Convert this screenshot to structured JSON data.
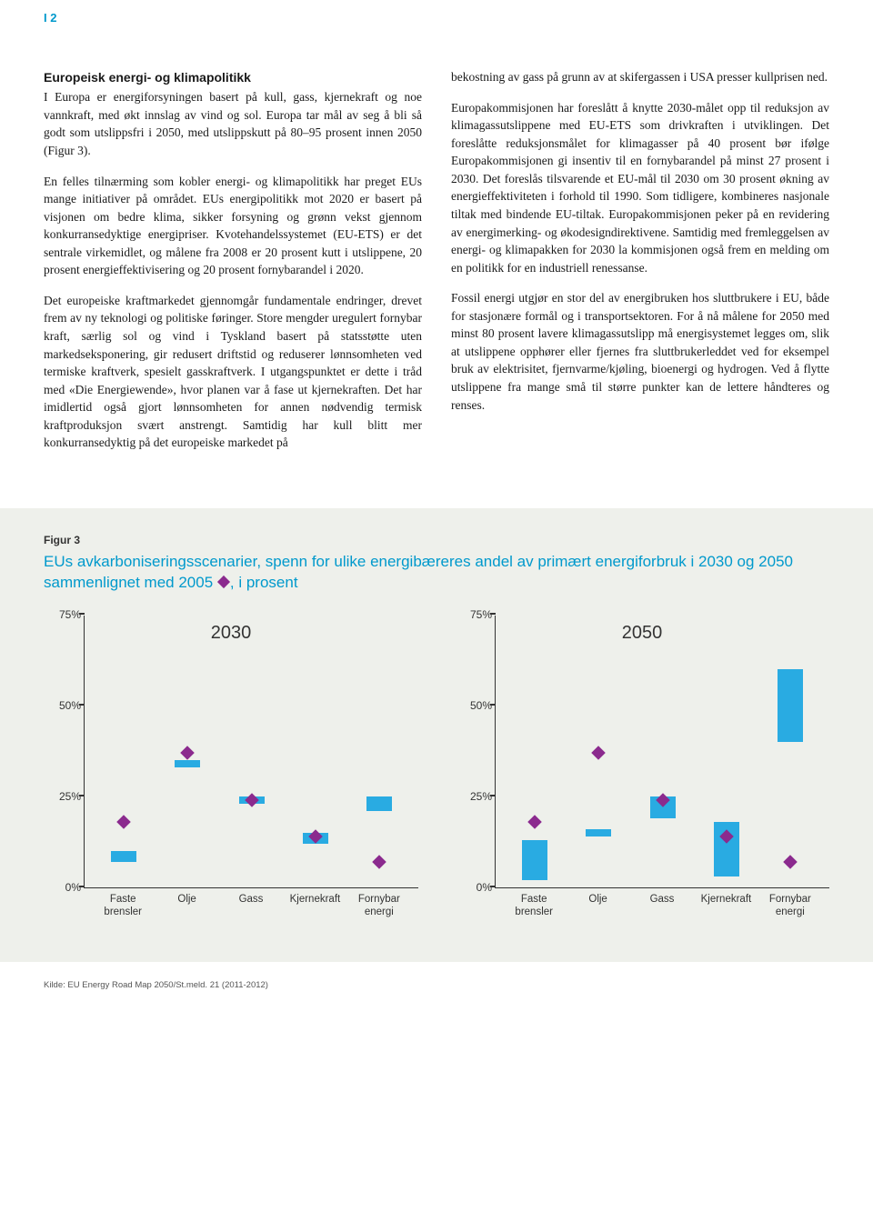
{
  "page_number": "I 2",
  "section_heading": "Europeisk energi- og klimapolitikk",
  "left_paragraphs": [
    "I Europa er energiforsyningen basert på kull, gass, kjernekraft og noe vannkraft, med økt innslag av vind og sol. Europa tar mål av seg å bli så godt som utslippsfri i 2050, med utslippskutt på 80–95 prosent innen 2050 (Figur 3).",
    "En felles tilnærming som kobler energi- og klimapolitikk har preget EUs mange initiativer på området. EUs energipolitikk mot 2020 er basert på visjonen om bedre klima, sikker forsyning og grønn vekst gjennom konkurransedyktige energipriser. Kvotehandelssystemet (EU-ETS) er det sentrale virkemidlet, og målene fra 2008 er 20 prosent kutt i utslippene, 20 prosent energieffektivisering og 20 prosent fornybarandel i 2020.",
    "Det europeiske kraftmarkedet gjennomgår fundamentale endringer, drevet frem av ny teknologi og politiske føringer. Store mengder uregulert fornybar kraft, særlig sol og vind i Tyskland basert på statsstøtte uten markedseksponering, gir redusert driftstid og reduserer lønnsomheten ved termiske kraftverk, spesielt gasskraftverk. I utgangspunktet er dette i tråd med «Die Energiewende», hvor planen var å fase ut kjernekraften. Det har imidlertid også gjort lønnsomheten for annen nødvendig termisk kraftproduksjon svært anstrengt. Samtidig har kull blitt mer konkurransedyktig på det europeiske markedet på"
  ],
  "right_paragraphs": [
    "bekostning av gass på grunn av at skifergassen i USA presser kullprisen ned.",
    "Europakommisjonen har foreslått å knytte 2030-målet opp til reduksjon av klimagassutslippene med EU-ETS som drivkraften i utviklingen. Det foreslåtte reduksjonsmålet for klimagasser på 40 prosent bør ifølge Europakommisjonen gi insentiv til en fornybarandel på minst 27 prosent i 2030. Det foreslås tilsvarende et EU-mål til 2030 om 30 prosent økning av energieffektiviteten i forhold til 1990. Som tidligere, kombineres nasjonale tiltak med bindende EU-tiltak. Europakommisjonen peker på en revidering av energimerking- og økodesigndirektivene. Samtidig med fremleggelsen av energi- og klimapakken for 2030 la kommisjonen også frem en melding om en politikk for en industriell renessanse.",
    "Fossil energi utgjør en stor del av energibruken hos sluttbrukere i EU, både for stasjonære formål og i transportsektoren. For å nå målene for 2050 med minst 80 prosent lavere klimagassutslipp må energisystemet legges om, slik at utslippene opphører eller fjernes fra sluttbrukerleddet ved for eksempel bruk av elektrisitet, fjernvarme/kjøling, bioenergi og hydrogen. Ved å flytte utslippene fra mange små til større punkter kan de lettere håndteres og renses."
  ],
  "figure": {
    "label": "Figur 3",
    "title_pre": "EUs avkarboniseringsscenarier, spenn for ulike energibæreres andel av primært energiforbruk i 2030 og 2050 sammenlignet med 2005 ",
    "title_post": ", i prosent",
    "source": "Kilde: EU Energy Road Map 2050/St.meld. 21 (2011-2012)",
    "bar_color": "#29abe2",
    "diamond_color": "#8b2a8e",
    "axis_color": "#333333",
    "background_color": "#eef0eb",
    "ymax": 75,
    "yticks": [
      0,
      25,
      50,
      75
    ],
    "ytick_labels": [
      "0%",
      "25%",
      "50%",
      "75%"
    ],
    "categories": [
      "Faste\nbrensler",
      "Olje",
      "Gass",
      "Kjernekraft",
      "Fornybar\nenergi"
    ],
    "panels": [
      {
        "title": "2030",
        "bars": [
          {
            "low": 7,
            "high": 10
          },
          {
            "low": 33,
            "high": 35
          },
          {
            "low": 23,
            "high": 25
          },
          {
            "low": 12,
            "high": 15
          },
          {
            "low": 21,
            "high": 25
          }
        ],
        "diamonds": [
          18,
          37,
          24,
          14,
          7
        ]
      },
      {
        "title": "2050",
        "bars": [
          {
            "low": 2,
            "high": 13
          },
          {
            "low": 14,
            "high": 16
          },
          {
            "low": 19,
            "high": 25
          },
          {
            "low": 3,
            "high": 18
          },
          {
            "low": 40,
            "high": 60
          }
        ],
        "diamonds": [
          18,
          37,
          24,
          14,
          7
        ]
      }
    ]
  }
}
